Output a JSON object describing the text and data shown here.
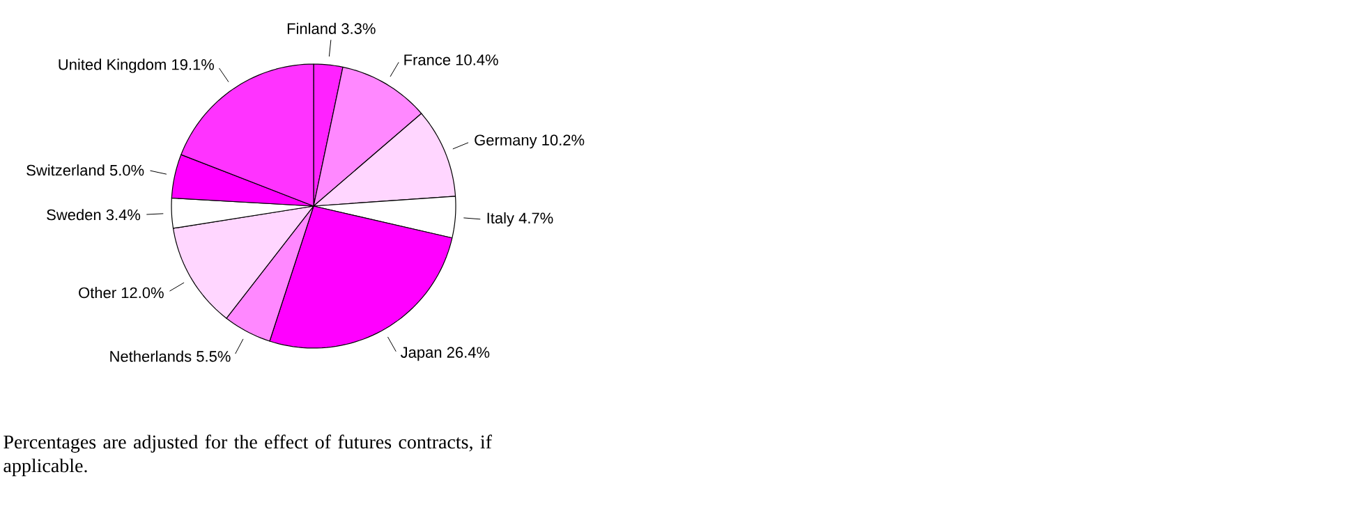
{
  "chart_data": {
    "type": "pie",
    "categories": [
      "Finland",
      "France",
      "Germany",
      "Italy",
      "Japan",
      "Netherlands",
      "Other",
      "Sweden",
      "Switzerland",
      "United Kingdom"
    ],
    "values": [
      3.3,
      10.4,
      10.2,
      4.7,
      26.4,
      5.5,
      12.0,
      3.4,
      5.0,
      19.1
    ],
    "value_labels": [
      "3.3%",
      "10.4%",
      "10.2%",
      "4.7%",
      "26.4%",
      "5.5%",
      "12.0%",
      "3.4%",
      "5.0%",
      "19.1%"
    ],
    "colors": [
      "#ff22ff",
      "#ff88ff",
      "#ffd6ff",
      "#ffffff",
      "#ff00ff",
      "#ff88ff",
      "#ffd6ff",
      "#ffffff",
      "#ff00ff",
      "#ff33ff"
    ],
    "annotations": [
      "Percentages are adjusted for the effect of futures contracts, if applicable."
    ]
  }
}
